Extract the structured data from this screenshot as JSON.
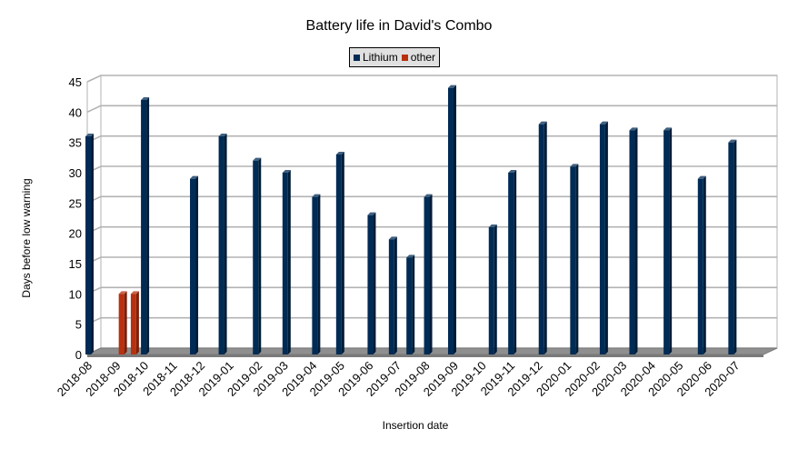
{
  "chart_data": {
    "type": "bar",
    "title": "Battery life in David's Combo",
    "xlabel": "Insertion date",
    "ylabel": "Days before low warning",
    "ylim": [
      0,
      45
    ],
    "yticks": [
      0,
      5,
      10,
      15,
      20,
      25,
      30,
      35,
      40,
      45
    ],
    "grid": true,
    "legend_position": "top-center",
    "x_tick_labels": [
      "2018-08",
      "2018-09",
      "2018-10",
      "2018-11",
      "2018-12",
      "2019-01",
      "2019-02",
      "2019-03",
      "2019-04",
      "2019-05",
      "2019-06",
      "2019-07",
      "2019-08",
      "2019-09",
      "2019-10",
      "2019-11",
      "2019-12",
      "2020-01",
      "2020-02",
      "2020-03",
      "2020-04",
      "2020-05",
      "2020-06",
      "2020-07"
    ],
    "x_range": [
      "2018-08-01",
      "2020-08-01"
    ],
    "series": [
      {
        "name": "Lithium",
        "color": "#002b55",
        "points": [
          {
            "x": "2018-08-02",
            "y": 36
          },
          {
            "x": "2018-10-01",
            "y": 42
          },
          {
            "x": "2018-11-23",
            "y": 29
          },
          {
            "x": "2018-12-24",
            "y": 36
          },
          {
            "x": "2019-01-30",
            "y": 32
          },
          {
            "x": "2019-03-03",
            "y": 30
          },
          {
            "x": "2019-04-04",
            "y": 26
          },
          {
            "x": "2019-04-30",
            "y": 33
          },
          {
            "x": "2019-06-03",
            "y": 23
          },
          {
            "x": "2019-06-26",
            "y": 19
          },
          {
            "x": "2019-07-15",
            "y": 16
          },
          {
            "x": "2019-08-03",
            "y": 26
          },
          {
            "x": "2019-08-29",
            "y": 44
          },
          {
            "x": "2019-10-12",
            "y": 21
          },
          {
            "x": "2019-11-02",
            "y": 30
          },
          {
            "x": "2019-12-05",
            "y": 38
          },
          {
            "x": "2020-01-08",
            "y": 31
          },
          {
            "x": "2020-02-09",
            "y": 38
          },
          {
            "x": "2020-03-12",
            "y": 37
          },
          {
            "x": "2020-04-18",
            "y": 37
          },
          {
            "x": "2020-05-25",
            "y": 29
          },
          {
            "x": "2020-06-27",
            "y": 35
          }
        ]
      },
      {
        "name": "other",
        "color": "#b8310f",
        "points": [
          {
            "x": "2018-09-07",
            "y": 10
          },
          {
            "x": "2018-09-20",
            "y": 10
          }
        ]
      }
    ]
  }
}
